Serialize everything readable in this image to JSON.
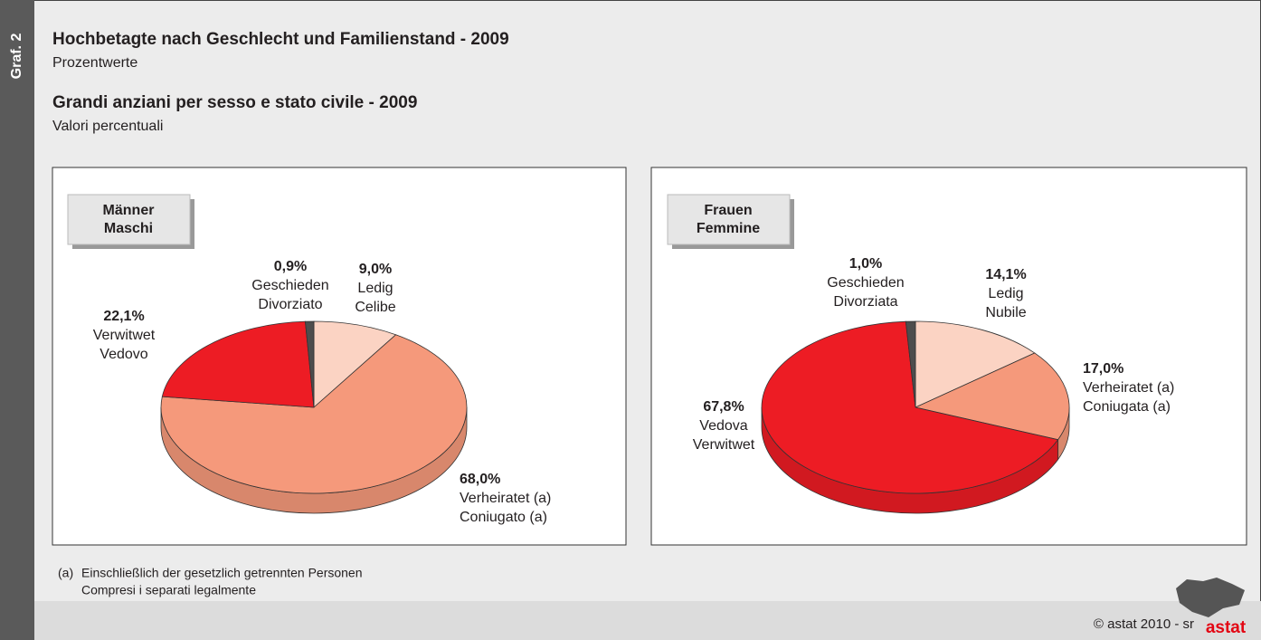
{
  "graf": "Graf. 2",
  "header": {
    "title_de": "Hochbetagte nach Geschlecht und Familienstand - 2009",
    "subtitle_de": "Prozentwerte",
    "title_it": "Grandi anziani per sesso e stato civile - 2009",
    "subtitle_it": "Valori percentuali"
  },
  "chart_data": [
    {
      "type": "pie",
      "title": "Männer",
      "subtitle": "Maschi",
      "categories": [
        "Ledig",
        "Verheiratet (a)",
        "Verwitwet",
        "Geschieden"
      ],
      "categories_2": [
        "Celibe",
        "Coniugato (a)",
        "Vedovo",
        "Divorziato"
      ],
      "values": [
        9.0,
        68.0,
        22.1,
        0.9
      ],
      "value_labels": [
        "9,0%",
        "68,0%",
        "22,1%",
        "0,9%"
      ],
      "colors": [
        "#fbd3c3",
        "#f5997b",
        "#ed1c24",
        "#4d4d4d"
      ]
    },
    {
      "type": "pie",
      "title": "Frauen",
      "subtitle": "Femmine",
      "categories": [
        "Ledig",
        "Verheiratet (a)",
        "Vedova",
        "Geschieden"
      ],
      "categories_2": [
        "Nubile",
        "Coniugata (a)",
        "Verwitwet",
        "Divorziata"
      ],
      "values": [
        14.1,
        17.0,
        67.8,
        1.0
      ],
      "value_labels": [
        "14,1%",
        "17,0%",
        "67,8%",
        "1,0%"
      ],
      "colors": [
        "#fbd3c3",
        "#f5997b",
        "#ed1c24",
        "#4d4d4d"
      ]
    }
  ],
  "footnote": {
    "mark": "(a)",
    "line_de": "Einschließlich der gesetzlich getrennten Personen",
    "line_it": "Compresi i separati legalmente"
  },
  "footer": {
    "copyright": "© astat 2010 - sr",
    "logo": "astat"
  }
}
